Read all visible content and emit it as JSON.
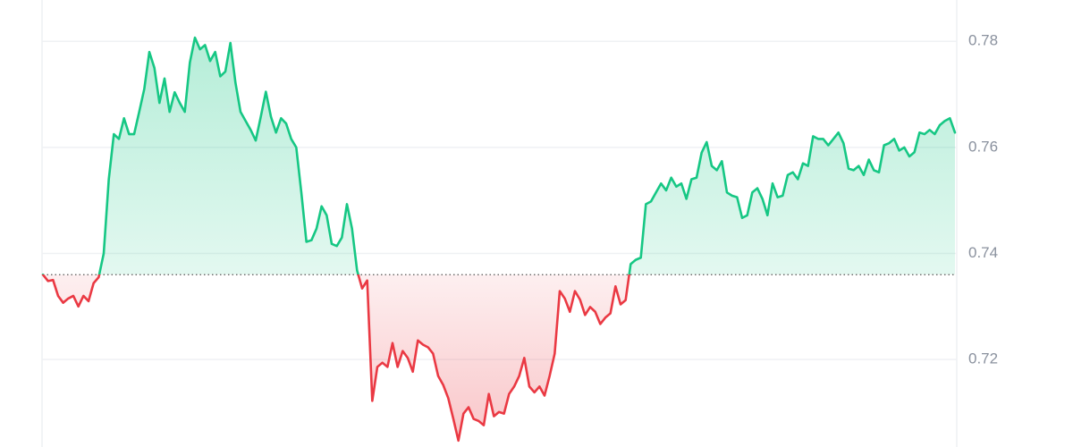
{
  "chart_data": {
    "type": "line",
    "values": [
      0.736,
      0.7348,
      0.735,
      0.732,
      0.7307,
      0.7315,
      0.732,
      0.73,
      0.732,
      0.731,
      0.7344,
      0.7355,
      0.74,
      0.754,
      0.7625,
      0.7616,
      0.7655,
      0.7625,
      0.7625,
      0.7667,
      0.771,
      0.778,
      0.775,
      0.7684,
      0.773,
      0.7667,
      0.7704,
      0.7684,
      0.7667,
      0.776,
      0.7807,
      0.7785,
      0.7793,
      0.7763,
      0.778,
      0.7734,
      0.7743,
      0.7797,
      0.7722,
      0.7667,
      0.765,
      0.7633,
      0.7613,
      0.7658,
      0.7705,
      0.7658,
      0.7628,
      0.7655,
      0.7645,
      0.7616,
      0.76,
      0.7515,
      0.7422,
      0.7425,
      0.7447,
      0.7489,
      0.7472,
      0.7418,
      0.7414,
      0.743,
      0.7493,
      0.7447,
      0.7368,
      0.7334,
      0.7349,
      0.7122,
      0.7186,
      0.7194,
      0.7186,
      0.7231,
      0.7186,
      0.7216,
      0.7203,
      0.7177,
      0.7236,
      0.7228,
      0.7223,
      0.7211,
      0.7169,
      0.7152,
      0.7127,
      0.7088,
      0.7047,
      0.7098,
      0.711,
      0.7088,
      0.7084,
      0.7076,
      0.7135,
      0.7093,
      0.7101,
      0.7098,
      0.7135,
      0.7149,
      0.7169,
      0.7203,
      0.7149,
      0.7138,
      0.7149,
      0.7132,
      0.7169,
      0.7211,
      0.7329,
      0.7315,
      0.729,
      0.7329,
      0.7313,
      0.7284,
      0.7299,
      0.729,
      0.7267,
      0.7279,
      0.7287,
      0.7338,
      0.7304,
      0.7312,
      0.738,
      0.7388,
      0.7392,
      0.7493,
      0.7498,
      0.7515,
      0.7532,
      0.7519,
      0.7543,
      0.7526,
      0.7532,
      0.7503,
      0.754,
      0.7543,
      0.759,
      0.761,
      0.7565,
      0.7557,
      0.7574,
      0.7515,
      0.7509,
      0.7506,
      0.7467,
      0.7472,
      0.7515,
      0.7523,
      0.7503,
      0.7472,
      0.7532,
      0.7506,
      0.7509,
      0.7548,
      0.7553,
      0.754,
      0.757,
      0.7565,
      0.7621,
      0.7616,
      0.7616,
      0.7604,
      0.7616,
      0.7628,
      0.7608,
      0.756,
      0.7557,
      0.7565,
      0.7548,
      0.7577,
      0.7557,
      0.7553,
      0.7604,
      0.7608,
      0.7616,
      0.7594,
      0.76,
      0.7583,
      0.7591,
      0.7628,
      0.7625,
      0.7633,
      0.7625,
      0.7642,
      0.765,
      0.7655,
      0.7628
    ],
    "baseline": 0.736,
    "color_up": "#16c784",
    "color_down": "#ea3943",
    "ylim": [
      0.7035,
      0.7878
    ],
    "yticks": [
      0.72,
      0.74,
      0.76,
      0.78
    ],
    "grid": true
  }
}
